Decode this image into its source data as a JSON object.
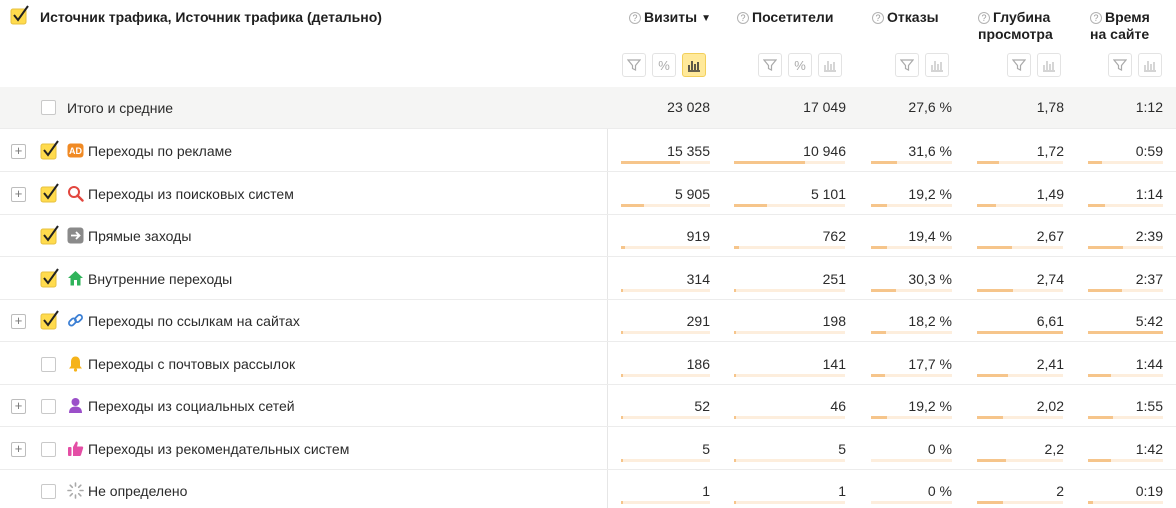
{
  "header": {
    "title": "Источник трафика, Источник трафика (детально)",
    "help_glyph": "?",
    "sort_glyph": "▼",
    "metrics": [
      {
        "line1": "Визиты",
        "line2": ""
      },
      {
        "line1": "Посетители",
        "line2": ""
      },
      {
        "line1": "Отказы",
        "line2": ""
      },
      {
        "line1": "Глубина",
        "line2": "просмотра"
      },
      {
        "line1": "Время",
        "line2": "на сайте"
      }
    ],
    "percent_glyph": "%"
  },
  "totals": {
    "label": "Итого и средние",
    "values": [
      "23 028",
      "17 049",
      "27,6 %",
      "1,78",
      "1:12"
    ]
  },
  "rows": [
    {
      "label": "Переходы по рекламе",
      "icon": "ad-icon",
      "expander": "+",
      "checked": true,
      "values": [
        "15 355",
        "10 946",
        "31,6 %",
        "1,72",
        "0:59"
      ],
      "ratios": [
        0.667,
        0.642,
        0.316,
        0.26,
        0.18
      ]
    },
    {
      "label": "Переходы из поисковых систем",
      "icon": "search-icon",
      "expander": "+",
      "checked": true,
      "values": [
        "5 905",
        "5 101",
        "19,2 %",
        "1,49",
        "1:14"
      ],
      "ratios": [
        0.256,
        0.299,
        0.192,
        0.225,
        0.22
      ]
    },
    {
      "label": "Прямые заходы",
      "icon": "arrow-right-icon",
      "expander": "",
      "checked": true,
      "values": [
        "919",
        "762",
        "19,4 %",
        "2,67",
        "2:39"
      ],
      "ratios": [
        0.04,
        0.045,
        0.194,
        0.404,
        0.46
      ]
    },
    {
      "label": "Внутренние переходы",
      "icon": "home-icon",
      "expander": "",
      "checked": true,
      "values": [
        "314",
        "251",
        "30,3 %",
        "2,74",
        "2:37"
      ],
      "ratios": [
        0.014,
        0.015,
        0.303,
        0.414,
        0.45
      ]
    },
    {
      "label": "Переходы по ссылкам на сайтах",
      "icon": "link-icon",
      "expander": "+",
      "checked": true,
      "values": [
        "291",
        "198",
        "18,2 %",
        "6,61",
        "5:42"
      ],
      "ratios": [
        0.013,
        0.012,
        0.182,
        1.0,
        1.0
      ]
    },
    {
      "label": "Переходы с почтовых рассылок",
      "icon": "bell-icon",
      "expander": "",
      "checked": false,
      "values": [
        "186",
        "141",
        "17,7 %",
        "2,41",
        "1:44"
      ],
      "ratios": [
        0.008,
        0.008,
        0.177,
        0.364,
        0.3
      ]
    },
    {
      "label": "Переходы из социальных сетей",
      "icon": "social-icon",
      "expander": "+",
      "checked": false,
      "values": [
        "52",
        "46",
        "19,2 %",
        "2,02",
        "1:55"
      ],
      "ratios": [
        0.003,
        0.003,
        0.192,
        0.306,
        0.33
      ]
    },
    {
      "label": "Переходы из рекомендательных систем",
      "icon": "thumbs-up-icon",
      "expander": "+",
      "checked": false,
      "values": [
        "5",
        "5",
        "0 %",
        "2,2",
        "1:42"
      ],
      "ratios": [
        0.001,
        0.001,
        0.0,
        0.333,
        0.3
      ]
    },
    {
      "label": "Не определено",
      "icon": "spinner-icon",
      "expander": "",
      "checked": false,
      "values": [
        "1",
        "1",
        "0 %",
        "2",
        "0:19"
      ],
      "ratios": [
        0.001,
        0.001,
        0.0,
        0.303,
        0.06
      ]
    }
  ],
  "colors": {
    "accent_yellow": "#ffdb4d",
    "bar_fill": "#f6c58b",
    "bar_track": "#fdeedd",
    "total_row_bg": "#f5f5f4"
  }
}
